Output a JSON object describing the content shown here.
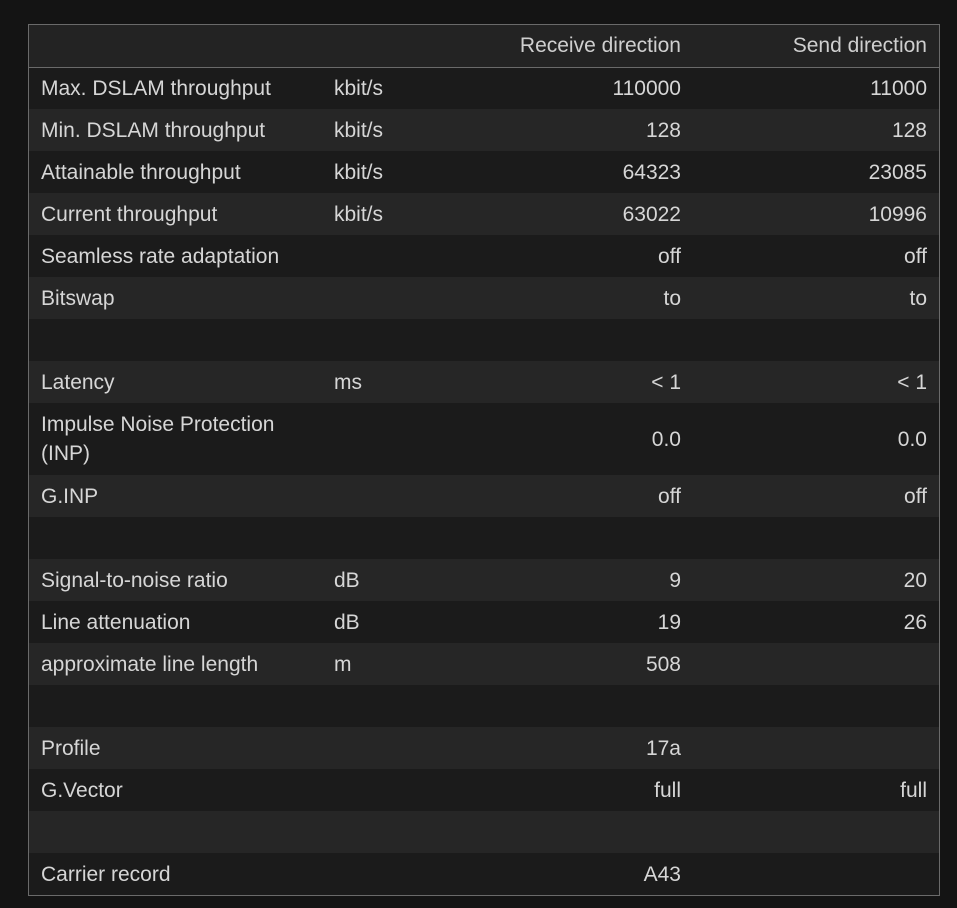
{
  "headers": {
    "label": "",
    "unit": "",
    "receive": "Receive direction",
    "send": "Send direction"
  },
  "rows": [
    {
      "label": "Max. DSLAM throughput",
      "unit": "kbit/s",
      "receive": "110000",
      "send": "11000"
    },
    {
      "label": "Min. DSLAM throughput",
      "unit": "kbit/s",
      "receive": "128",
      "send": "128"
    },
    {
      "label": "Attainable throughput",
      "unit": "kbit/s",
      "receive": "64323",
      "send": "23085"
    },
    {
      "label": "Current throughput",
      "unit": "kbit/s",
      "receive": "63022",
      "send": "10996"
    },
    {
      "label": "Seamless rate adaptation",
      "unit": "",
      "receive": "off",
      "send": "off"
    },
    {
      "label": "Bitswap",
      "unit": "",
      "receive": "to",
      "send": "to"
    },
    {
      "label": "",
      "unit": "",
      "receive": "",
      "send": ""
    },
    {
      "label": "Latency",
      "unit": "ms",
      "receive": "< 1",
      "send": "< 1"
    },
    {
      "label": "Impulse Noise Protection (INP)",
      "unit": "",
      "receive": "0.0",
      "send": "0.0"
    },
    {
      "label": "G.INP",
      "unit": "",
      "receive": "off",
      "send": "off"
    },
    {
      "label": "",
      "unit": "",
      "receive": "",
      "send": ""
    },
    {
      "label": "Signal-to-noise ratio",
      "unit": "dB",
      "receive": "9",
      "send": "20"
    },
    {
      "label": "Line attenuation",
      "unit": "dB",
      "receive": "19",
      "send": "26"
    },
    {
      "label": "approximate line length",
      "unit": "m",
      "receive": "508",
      "send": ""
    },
    {
      "label": "",
      "unit": "",
      "receive": "",
      "send": ""
    },
    {
      "label": "Profile",
      "unit": "",
      "receive": "17a",
      "send": ""
    },
    {
      "label": "G.Vector",
      "unit": "",
      "receive": "full",
      "send": "full"
    },
    {
      "label": "",
      "unit": "",
      "receive": "",
      "send": ""
    },
    {
      "label": "Carrier record",
      "unit": "",
      "receive": "A43",
      "send": ""
    }
  ]
}
